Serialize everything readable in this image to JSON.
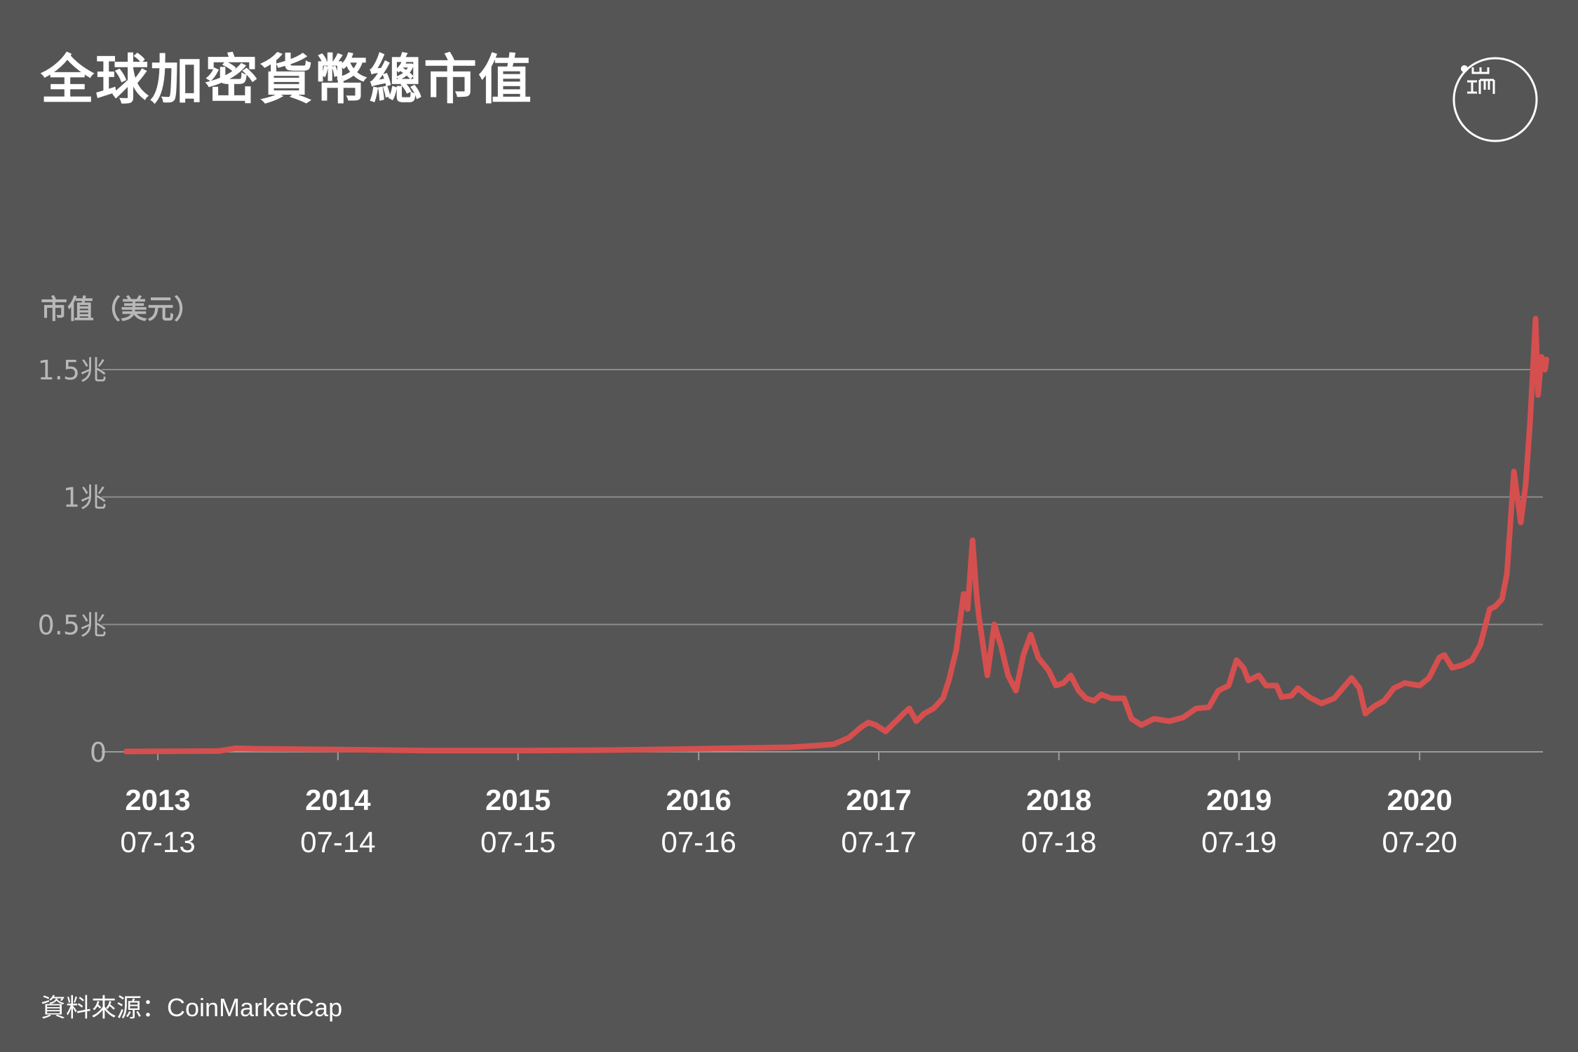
{
  "title": "全球加密貨幣總市值",
  "source": "資料來源：CoinMarketCap",
  "colors": {
    "background": "#555555",
    "line": "#d54f4f",
    "grid": "#8c8c8c",
    "text": "#ffffff",
    "axis_text": "#b8b8b8"
  },
  "chart_data": {
    "type": "line",
    "title": "全球加密貨幣總市值",
    "ylabel": "市值（美元）",
    "xlabel": "",
    "ylim": [
      0,
      1.5
    ],
    "y_unit": "兆美元",
    "y_ticks": [
      {
        "value": 0,
        "label": "0"
      },
      {
        "value": 0.5,
        "label": "0.5兆"
      },
      {
        "value": 1,
        "label": "1兆"
      },
      {
        "value": 1.5,
        "label": "1.5兆"
      }
    ],
    "x_ticks": [
      {
        "date": "2013-07-01",
        "year": "2013",
        "label": "07-13"
      },
      {
        "date": "2014-07-01",
        "year": "2014",
        "label": "07-14"
      },
      {
        "date": "2015-07-01",
        "year": "2015",
        "label": "07-15"
      },
      {
        "date": "2016-07-01",
        "year": "2016",
        "label": "07-16"
      },
      {
        "date": "2017-07-01",
        "year": "2017",
        "label": "07-17"
      },
      {
        "date": "2018-07-01",
        "year": "2018",
        "label": "07-18"
      },
      {
        "date": "2019-07-01",
        "year": "2019",
        "label": "07-19"
      },
      {
        "date": "2020-07-01",
        "year": "2020",
        "label": "07-20"
      }
    ],
    "x_range": [
      "2013-04-28",
      "2021-03-15"
    ],
    "grid": "horizontal",
    "series": [
      {
        "color": "#d54f4f",
        "points": [
          [
            "2013-04-28",
            0.0015
          ],
          [
            "2013-11-01",
            0.003
          ],
          [
            "2013-12-05",
            0.014
          ],
          [
            "2014-01-15",
            0.012
          ],
          [
            "2014-07-01",
            0.009
          ],
          [
            "2015-01-01",
            0.005
          ],
          [
            "2015-07-01",
            0.005
          ],
          [
            "2016-01-01",
            0.007
          ],
          [
            "2016-06-01",
            0.011
          ],
          [
            "2016-07-01",
            0.012
          ],
          [
            "2017-01-01",
            0.018
          ],
          [
            "2017-03-01",
            0.025
          ],
          [
            "2017-04-01",
            0.03
          ],
          [
            "2017-05-01",
            0.055
          ],
          [
            "2017-05-25",
            0.095
          ],
          [
            "2017-06-10",
            0.115
          ],
          [
            "2017-06-25",
            0.105
          ],
          [
            "2017-07-15",
            0.08
          ],
          [
            "2017-07-25",
            0.1
          ],
          [
            "2017-08-10",
            0.13
          ],
          [
            "2017-08-20",
            0.15
          ],
          [
            "2017-09-01",
            0.17
          ],
          [
            "2017-09-15",
            0.12
          ],
          [
            "2017-10-01",
            0.15
          ],
          [
            "2017-10-20",
            0.17
          ],
          [
            "2017-11-08",
            0.21
          ],
          [
            "2017-11-20",
            0.28
          ],
          [
            "2017-12-05",
            0.4
          ],
          [
            "2017-12-20",
            0.62
          ],
          [
            "2017-12-28",
            0.56
          ],
          [
            "2018-01-07",
            0.83
          ],
          [
            "2018-01-15",
            0.62
          ],
          [
            "2018-01-20",
            0.53
          ],
          [
            "2018-02-06",
            0.3
          ],
          [
            "2018-02-20",
            0.5
          ],
          [
            "2018-03-05",
            0.42
          ],
          [
            "2018-03-20",
            0.3
          ],
          [
            "2018-04-05",
            0.24
          ],
          [
            "2018-04-20",
            0.38
          ],
          [
            "2018-05-05",
            0.46
          ],
          [
            "2018-05-20",
            0.37
          ],
          [
            "2018-06-10",
            0.32
          ],
          [
            "2018-06-25",
            0.26
          ],
          [
            "2018-07-10",
            0.27
          ],
          [
            "2018-07-25",
            0.3
          ],
          [
            "2018-08-10",
            0.24
          ],
          [
            "2018-08-25",
            0.21
          ],
          [
            "2018-09-10",
            0.2
          ],
          [
            "2018-09-25",
            0.225
          ],
          [
            "2018-10-15",
            0.21
          ],
          [
            "2018-11-10",
            0.21
          ],
          [
            "2018-11-25",
            0.13
          ],
          [
            "2018-12-15",
            0.105
          ],
          [
            "2019-01-10",
            0.13
          ],
          [
            "2019-02-10",
            0.12
          ],
          [
            "2019-03-10",
            0.135
          ],
          [
            "2019-04-05",
            0.17
          ],
          [
            "2019-05-01",
            0.175
          ],
          [
            "2019-05-20",
            0.24
          ],
          [
            "2019-06-10",
            0.26
          ],
          [
            "2019-06-26",
            0.36
          ],
          [
            "2019-07-10",
            0.33
          ],
          [
            "2019-07-20",
            0.28
          ],
          [
            "2019-08-10",
            0.3
          ],
          [
            "2019-08-25",
            0.26
          ],
          [
            "2019-09-15",
            0.26
          ],
          [
            "2019-09-25",
            0.215
          ],
          [
            "2019-10-15",
            0.22
          ],
          [
            "2019-10-28",
            0.25
          ],
          [
            "2019-11-20",
            0.215
          ],
          [
            "2019-12-15",
            0.19
          ],
          [
            "2020-01-10",
            0.21
          ],
          [
            "2020-02-14",
            0.29
          ],
          [
            "2020-03-01",
            0.25
          ],
          [
            "2020-03-13",
            0.15
          ],
          [
            "2020-04-01",
            0.18
          ],
          [
            "2020-04-20",
            0.2
          ],
          [
            "2020-05-10",
            0.25
          ],
          [
            "2020-06-01",
            0.27
          ],
          [
            "2020-07-01",
            0.26
          ],
          [
            "2020-07-20",
            0.29
          ],
          [
            "2020-08-10",
            0.37
          ],
          [
            "2020-08-20",
            0.38
          ],
          [
            "2020-09-05",
            0.33
          ],
          [
            "2020-09-25",
            0.34
          ],
          [
            "2020-10-15",
            0.36
          ],
          [
            "2020-11-01",
            0.42
          ],
          [
            "2020-11-20",
            0.56
          ],
          [
            "2020-12-01",
            0.57
          ],
          [
            "2020-12-15",
            0.6
          ],
          [
            "2020-12-25",
            0.7
          ],
          [
            "2021-01-08",
            1.1
          ],
          [
            "2021-01-15",
            1.0
          ],
          [
            "2021-01-22",
            0.9
          ],
          [
            "2021-02-01",
            1.05
          ],
          [
            "2021-02-10",
            1.3
          ],
          [
            "2021-02-21",
            1.7
          ],
          [
            "2021-02-26",
            1.4
          ],
          [
            "2021-03-05",
            1.55
          ],
          [
            "2021-03-12",
            1.5
          ],
          [
            "2021-03-15",
            1.54
          ]
        ]
      }
    ]
  }
}
